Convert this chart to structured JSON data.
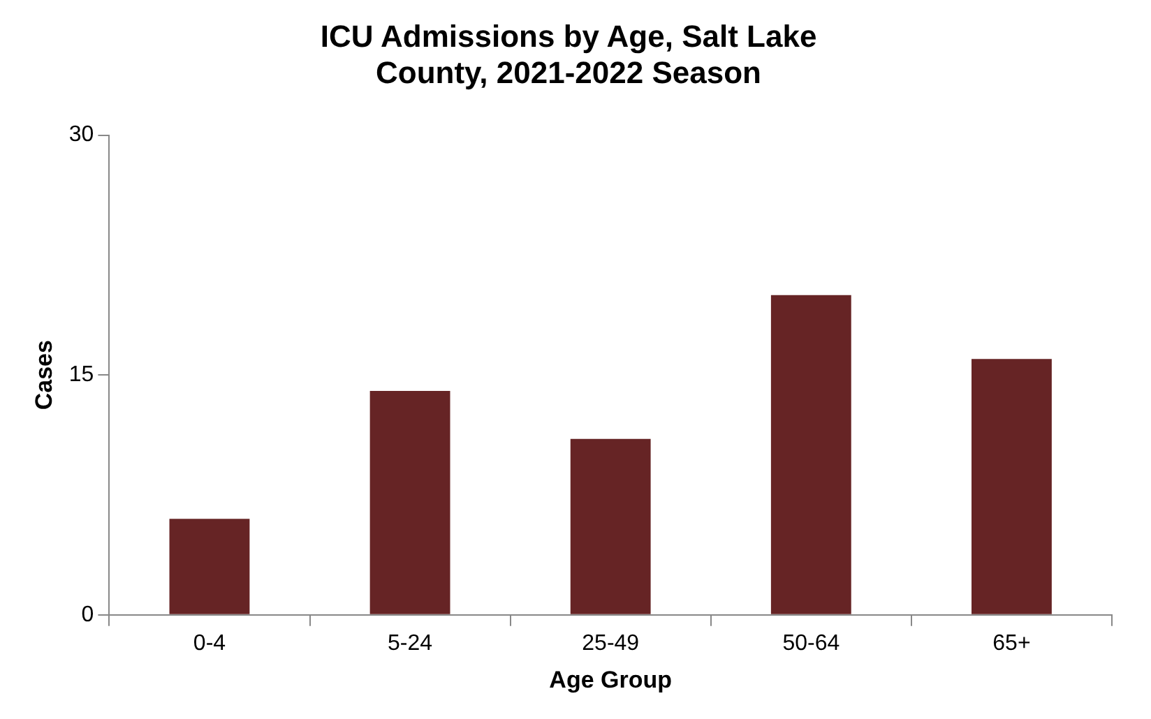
{
  "chart_data": {
    "type": "bar",
    "title": "ICU Admissions by Age, Salt Lake County, 2021-2022 Season",
    "xlabel": "Age Group",
    "ylabel": "Cases",
    "categories": [
      "0-4",
      "5-24",
      "25-49",
      "50-64",
      "65+"
    ],
    "values": [
      6,
      14,
      11,
      20,
      16
    ],
    "color": "#662425",
    "ylim": [
      0,
      30
    ],
    "yticks": [
      0,
      15,
      30
    ],
    "grid": false,
    "legend": false
  }
}
